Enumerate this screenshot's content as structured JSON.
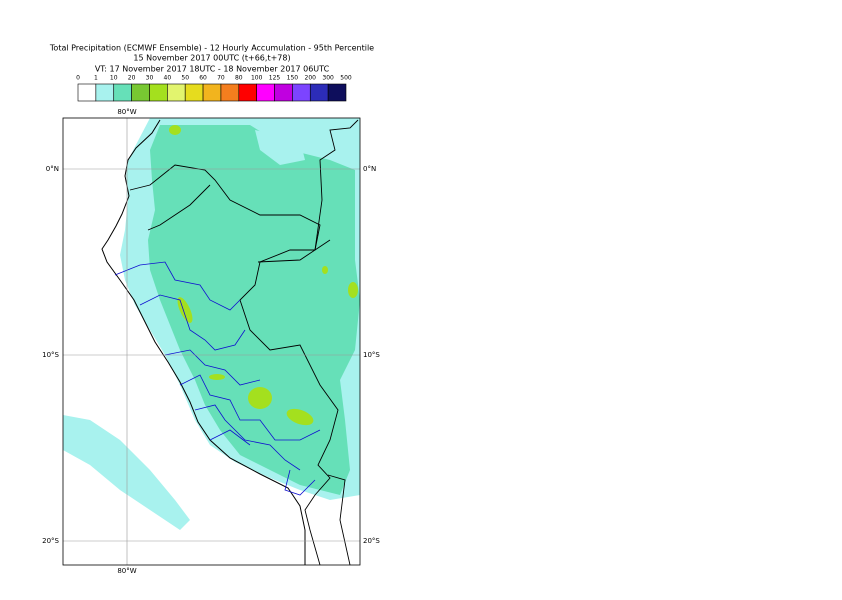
{
  "title": [
    "Total Precipitation (ECMWF Ensemble) - 12 Hourly Accumulation - 95th Percentile",
    "15 November 2017 00UTC (t+66,t+78)",
    "VT: 17 November 2017 18UTC - 18 November 2017 06UTC"
  ],
  "legend": {
    "bounds": [
      "0",
      "1",
      "10",
      "20",
      "30",
      "40",
      "50",
      "60",
      "70",
      "80",
      "100",
      "125",
      "150",
      "200",
      "300",
      "500"
    ],
    "colors": [
      "#ffffff",
      "#a8f2ee",
      "#66e0b8",
      "#78c832",
      "#a4e01e",
      "#e2f46e",
      "#e6dc1e",
      "#f2b41e",
      "#f47e1e",
      "#ff0000",
      "#ff00ff",
      "#c000e0",
      "#7c44ff",
      "#2c2cb8",
      "#0e0e5c"
    ]
  },
  "map": {
    "lon_lines": [
      "80°W"
    ],
    "lat_lines": [
      "0°N",
      "10°S",
      "20°S"
    ]
  }
}
